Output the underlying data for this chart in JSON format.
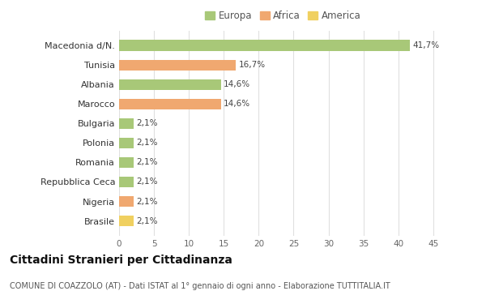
{
  "categories": [
    "Brasile",
    "Nigeria",
    "Repubblica Ceca",
    "Romania",
    "Polonia",
    "Bulgaria",
    "Marocco",
    "Albania",
    "Tunisia",
    "Macedonia d/N."
  ],
  "values": [
    2.1,
    2.1,
    2.1,
    2.1,
    2.1,
    2.1,
    14.6,
    14.6,
    16.7,
    41.7
  ],
  "colors": [
    "#f0d060",
    "#f0a870",
    "#a8c878",
    "#a8c878",
    "#a8c878",
    "#a8c878",
    "#f0a870",
    "#a8c878",
    "#f0a870",
    "#a8c878"
  ],
  "labels": [
    "2,1%",
    "2,1%",
    "2,1%",
    "2,1%",
    "2,1%",
    "2,1%",
    "14,6%",
    "14,6%",
    "16,7%",
    "41,7%"
  ],
  "legend": [
    {
      "label": "Europa",
      "color": "#a8c878"
    },
    {
      "label": "Africa",
      "color": "#f0a870"
    },
    {
      "label": "America",
      "color": "#f0d060"
    }
  ],
  "title": "Cittadini Stranieri per Cittadinanza",
  "subtitle": "COMUNE DI COAZZOLO (AT) - Dati ISTAT al 1° gennaio di ogni anno - Elaborazione TUTTITALIA.IT",
  "xlim": [
    0,
    47
  ],
  "xticks": [
    0,
    5,
    10,
    15,
    20,
    25,
    30,
    35,
    40,
    45
  ],
  "background_color": "#ffffff",
  "grid_color": "#e0e0e0",
  "bar_height": 0.55,
  "value_label_fontsize": 7.5,
  "ytick_fontsize": 8,
  "xtick_fontsize": 7.5,
  "title_fontsize": 10,
  "subtitle_fontsize": 7
}
